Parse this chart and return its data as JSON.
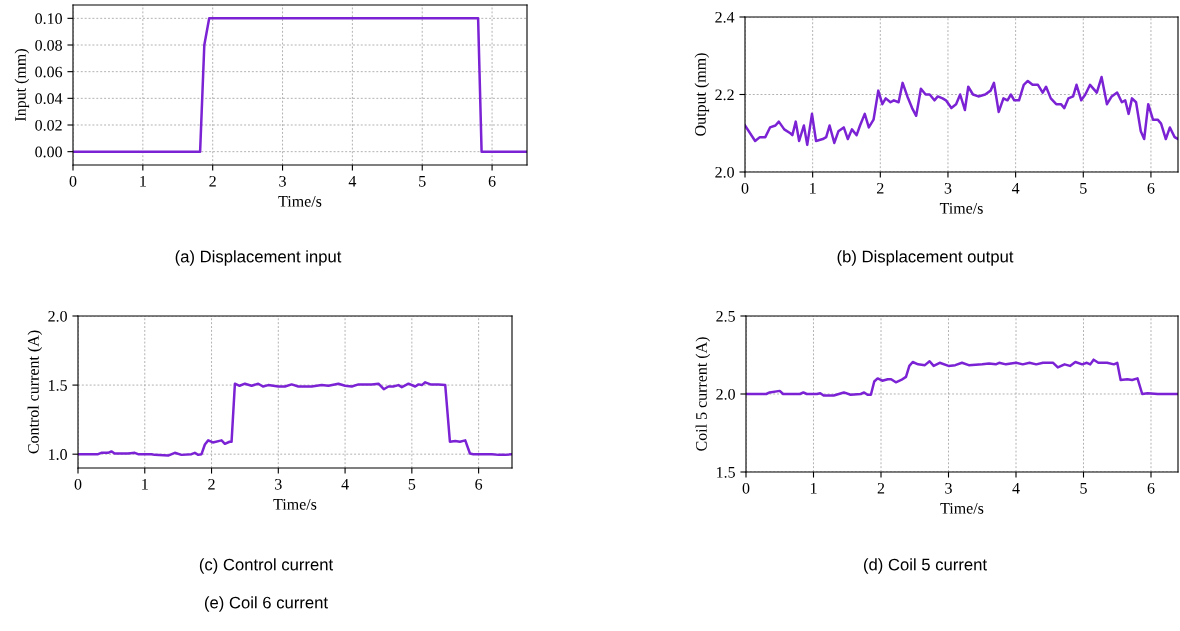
{
  "chart_data": [
    {
      "type": "line",
      "title": "(a) Displacement input",
      "xlabel": "Time/s",
      "ylabel": "Input (mm)",
      "color": "#7b22d4",
      "grid": true,
      "x": [
        0,
        1.82,
        1.88,
        1.95,
        5.8,
        5.85,
        6.5
      ],
      "values": [
        0,
        0,
        0.08,
        0.1,
        0.1,
        0,
        0
      ],
      "xlim": [
        0,
        6.5
      ],
      "ylim": [
        -0.01,
        0.11
      ],
      "xticks": [
        0,
        1,
        2,
        3,
        4,
        5,
        6
      ],
      "yticks": [
        {
          "value": 0,
          "label": "0.00"
        },
        {
          "value": 0.02,
          "label": "0.02"
        },
        {
          "value": 0.04,
          "label": "0.04"
        },
        {
          "value": 0.06,
          "label": "0.06"
        },
        {
          "value": 0.08,
          "label": "0.08"
        },
        {
          "value": 0.1,
          "label": "0.10"
        }
      ]
    },
    {
      "type": "line",
      "title": "(b) Displacement output",
      "xlabel": "Time/s",
      "ylabel": "Output (mm)",
      "color": "#7b22d4",
      "grid": true,
      "x": [
        0,
        0.15,
        0.22,
        0.3,
        0.37,
        0.45,
        0.5,
        0.58,
        0.67,
        0.7,
        0.75,
        0.8,
        0.87,
        0.92,
        0.99,
        1.05,
        1.15,
        1.2,
        1.25,
        1.32,
        1.38,
        1.46,
        1.52,
        1.58,
        1.65,
        1.7,
        1.77,
        1.83,
        1.9,
        1.97,
        2.03,
        2.08,
        2.15,
        2.2,
        2.27,
        2.33,
        2.4,
        2.47,
        2.53,
        2.6,
        2.67,
        2.73,
        2.8,
        2.85,
        2.92,
        2.97,
        3.05,
        3.12,
        3.18,
        3.25,
        3.3,
        3.37,
        3.45,
        3.55,
        3.63,
        3.68,
        3.75,
        3.82,
        3.88,
        3.93,
        3.98,
        4.05,
        4.12,
        4.18,
        4.25,
        4.33,
        4.4,
        4.45,
        4.52,
        4.6,
        4.67,
        4.72,
        4.78,
        4.85,
        4.9,
        4.97,
        5.03,
        5.1,
        5.2,
        5.27,
        5.35,
        5.42,
        5.5,
        5.57,
        5.62,
        5.67,
        5.72,
        5.78,
        5.85,
        5.9,
        5.96,
        6.03,
        6.1,
        6.15,
        6.22,
        6.28,
        6.35,
        6.4
      ],
      "values": [
        2.12,
        2.08,
        2.09,
        2.09,
        2.115,
        2.12,
        2.13,
        2.11,
        2.1,
        2.095,
        2.13,
        2.08,
        2.12,
        2.07,
        2.15,
        2.08,
        2.085,
        2.09,
        2.12,
        2.075,
        2.105,
        2.115,
        2.085,
        2.11,
        2.095,
        2.12,
        2.15,
        2.115,
        2.135,
        2.21,
        2.175,
        2.19,
        2.18,
        2.185,
        2.18,
        2.23,
        2.195,
        2.165,
        2.145,
        2.215,
        2.2,
        2.2,
        2.185,
        2.195,
        2.19,
        2.185,
        2.165,
        2.175,
        2.2,
        2.16,
        2.22,
        2.2,
        2.195,
        2.2,
        2.21,
        2.23,
        2.155,
        2.19,
        2.185,
        2.2,
        2.185,
        2.185,
        2.225,
        2.235,
        2.225,
        2.225,
        2.205,
        2.22,
        2.19,
        2.175,
        2.175,
        2.165,
        2.19,
        2.195,
        2.225,
        2.185,
        2.2,
        2.225,
        2.205,
        2.245,
        2.175,
        2.195,
        2.205,
        2.18,
        2.185,
        2.15,
        2.19,
        2.18,
        2.105,
        2.085,
        2.175,
        2.135,
        2.135,
        2.125,
        2.085,
        2.115,
        2.09,
        2.085
      ],
      "xlim": [
        0,
        6.4
      ],
      "ylim": [
        2.0,
        2.4
      ],
      "xticks": [
        0,
        1,
        2,
        3,
        4,
        5,
        6
      ],
      "yticks": [
        {
          "value": 2.0,
          "label": "2.0"
        },
        2.2,
        2.4
      ]
    },
    {
      "type": "line",
      "title": "(c) Control current",
      "xlabel": "Time/s",
      "ylabel": "Control current (A)",
      "color": "#7b22d4",
      "grid": true,
      "annotations": [
        "(e) Coil 6 current"
      ],
      "x": [
        0,
        0.3,
        0.35,
        0.45,
        0.5,
        0.55,
        0.75,
        0.85,
        0.9,
        1.1,
        1.15,
        1.35,
        1.45,
        1.55,
        1.7,
        1.75,
        1.8,
        1.85,
        1.9,
        1.95,
        2.02,
        2.15,
        2.2,
        2.27,
        2.3,
        2.35,
        2.42,
        2.5,
        2.6,
        2.7,
        2.77,
        2.85,
        3.0,
        3.1,
        3.2,
        3.3,
        3.5,
        3.65,
        3.75,
        3.9,
        4.0,
        4.1,
        4.2,
        4.4,
        4.5,
        4.58,
        4.65,
        4.72,
        4.8,
        4.85,
        4.95,
        5.05,
        5.1,
        5.15,
        5.2,
        5.28,
        5.4,
        5.5,
        5.57,
        5.65,
        5.72,
        5.8,
        5.87,
        5.92,
        6.2,
        6.3,
        6.4,
        6.5
      ],
      "values": [
        1.0,
        1.0,
        1.01,
        1.01,
        1.02,
        1.005,
        1.005,
        1.01,
        1.0,
        1.0,
        0.995,
        0.99,
        1.01,
        0.995,
        1.0,
        1.01,
        0.995,
        1.0,
        1.07,
        1.1,
        1.085,
        1.1,
        1.075,
        1.09,
        1.09,
        1.51,
        1.495,
        1.51,
        1.495,
        1.51,
        1.49,
        1.5,
        1.49,
        1.49,
        1.505,
        1.49,
        1.49,
        1.5,
        1.495,
        1.51,
        1.495,
        1.49,
        1.505,
        1.505,
        1.51,
        1.47,
        1.49,
        1.49,
        1.5,
        1.485,
        1.51,
        1.49,
        1.505,
        1.5,
        1.52,
        1.505,
        1.505,
        1.5,
        1.09,
        1.095,
        1.09,
        1.1,
        1.005,
        1.0,
        1.0,
        0.995,
        0.995,
        1.0
      ],
      "xlim": [
        0,
        6.5
      ],
      "ylim": [
        0.9,
        2.0
      ],
      "xticks": [
        0,
        1,
        2,
        3,
        4,
        5,
        6
      ],
      "yticks": [
        {
          "value": 1.0,
          "label": "1.0"
        },
        1.5,
        {
          "value": 2.0,
          "label": "2.0"
        }
      ]
    },
    {
      "type": "line",
      "title": "(d) Coil 5 current",
      "xlabel": "Time/s",
      "ylabel": "Coil 5 current (A)",
      "color": "#7b22d4",
      "grid": true,
      "x": [
        0,
        0.3,
        0.35,
        0.5,
        0.55,
        0.8,
        0.85,
        0.9,
        1.05,
        1.1,
        1.15,
        1.3,
        1.45,
        1.55,
        1.7,
        1.75,
        1.8,
        1.85,
        1.9,
        1.95,
        2.02,
        2.1,
        2.15,
        2.22,
        2.3,
        2.37,
        2.42,
        2.47,
        2.55,
        2.65,
        2.72,
        2.78,
        2.87,
        3.0,
        3.1,
        3.2,
        3.3,
        3.5,
        3.6,
        3.7,
        3.75,
        3.85,
        4.0,
        4.1,
        4.2,
        4.3,
        4.4,
        4.55,
        4.62,
        4.72,
        4.8,
        4.88,
        4.98,
        5.05,
        5.1,
        5.15,
        5.22,
        5.35,
        5.45,
        5.5,
        5.55,
        5.65,
        5.72,
        5.8,
        5.87,
        5.95,
        6.1,
        6.4
      ],
      "values": [
        2.0,
        2.0,
        2.01,
        2.02,
        2.0,
        2.0,
        2.01,
        2.0,
        2.0,
        2.005,
        1.99,
        1.99,
        2.01,
        1.995,
        2.0,
        2.01,
        1.995,
        1.995,
        2.08,
        2.1,
        2.085,
        2.095,
        2.095,
        2.075,
        2.09,
        2.11,
        2.18,
        2.205,
        2.19,
        2.185,
        2.21,
        2.18,
        2.2,
        2.18,
        2.185,
        2.2,
        2.185,
        2.19,
        2.195,
        2.19,
        2.2,
        2.19,
        2.2,
        2.19,
        2.2,
        2.19,
        2.2,
        2.2,
        2.17,
        2.19,
        2.18,
        2.205,
        2.19,
        2.2,
        2.19,
        2.22,
        2.2,
        2.2,
        2.19,
        2.2,
        2.09,
        2.095,
        2.09,
        2.1,
        2.0,
        2.005,
        2.0,
        2.0
      ],
      "xlim": [
        0,
        6.4
      ],
      "ylim": [
        1.5,
        2.5
      ],
      "xticks": [
        0,
        1,
        2,
        3,
        4,
        5,
        6
      ],
      "yticks": [
        1.5,
        {
          "value": 2.0,
          "label": "2.0"
        },
        2.5
      ]
    }
  ]
}
